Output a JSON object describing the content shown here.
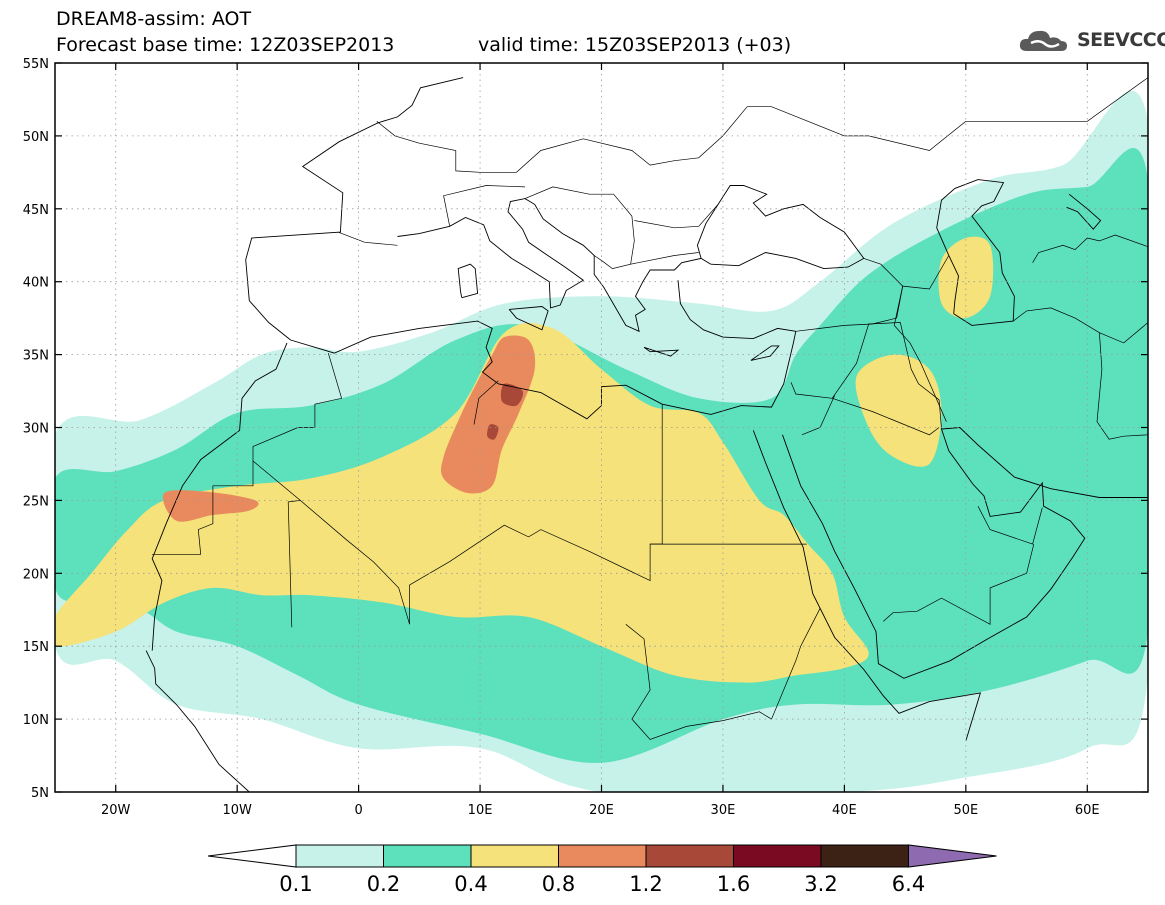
{
  "header": {
    "title_line1": "DREAM8-assim: AOT",
    "title_line2": "Forecast base time: 12Z03SEP2013",
    "valid_time": "valid time: 15Z03SEP2013 (+03)"
  },
  "logo": {
    "text": "SEEVCCC",
    "icon": "cloud-icon"
  },
  "map": {
    "lon_range": [
      -25,
      65
    ],
    "lat_range": [
      5,
      55
    ],
    "lon_ticks": [
      {
        "value": -20,
        "label": "20W"
      },
      {
        "value": -10,
        "label": "10W"
      },
      {
        "value": 0,
        "label": "0"
      },
      {
        "value": 10,
        "label": "10E"
      },
      {
        "value": 20,
        "label": "20E"
      },
      {
        "value": 30,
        "label": "30E"
      },
      {
        "value": 40,
        "label": "40E"
      },
      {
        "value": 50,
        "label": "50E"
      },
      {
        "value": 60,
        "label": "60E"
      }
    ],
    "lat_ticks": [
      {
        "value": 5,
        "label": "5N"
      },
      {
        "value": 10,
        "label": "10N"
      },
      {
        "value": 15,
        "label": "15N"
      },
      {
        "value": 20,
        "label": "20N"
      },
      {
        "value": 25,
        "label": "25N"
      },
      {
        "value": 30,
        "label": "30N"
      },
      {
        "value": 35,
        "label": "35N"
      },
      {
        "value": 40,
        "label": "40N"
      },
      {
        "value": 45,
        "label": "45N"
      },
      {
        "value": 50,
        "label": "50N"
      },
      {
        "value": 55,
        "label": "55N"
      }
    ],
    "grid": true,
    "contours": [
      {
        "level": 0,
        "points": [
          [
            -25,
            29.5
          ],
          [
            -18,
            30.5
          ],
          [
            -12,
            33
          ],
          [
            -8,
            35
          ],
          [
            -4,
            35.5
          ],
          [
            0,
            35.2
          ],
          [
            6,
            36.5
          ],
          [
            12,
            38.5
          ],
          [
            20,
            39
          ],
          [
            28,
            38.5
          ],
          [
            34,
            38
          ],
          [
            38,
            40
          ],
          [
            44,
            44
          ],
          [
            52,
            47
          ],
          [
            58,
            48
          ],
          [
            65,
            51
          ],
          [
            65,
            13
          ],
          [
            60,
            8
          ],
          [
            50,
            6
          ],
          [
            40,
            5
          ],
          [
            20,
            5
          ],
          [
            10,
            8
          ],
          [
            0,
            8
          ],
          [
            -8,
            10
          ],
          [
            -15,
            11
          ],
          [
            -20,
            14
          ],
          [
            -25,
            15
          ]
        ]
      },
      {
        "level": 1,
        "points": [
          [
            -25,
            26.5
          ],
          [
            -20,
            27
          ],
          [
            -15,
            28.5
          ],
          [
            -10,
            31
          ],
          [
            -4,
            31.5
          ],
          [
            2,
            33
          ],
          [
            8,
            36
          ],
          [
            14,
            37
          ],
          [
            22,
            34
          ],
          [
            28,
            32
          ],
          [
            34,
            32
          ],
          [
            36,
            35
          ],
          [
            38,
            37
          ],
          [
            42,
            40.5
          ],
          [
            48,
            43.5
          ],
          [
            55,
            46
          ],
          [
            60,
            46.5
          ],
          [
            65,
            47
          ],
          [
            65,
            16
          ],
          [
            60,
            14
          ],
          [
            52,
            12
          ],
          [
            44,
            11
          ],
          [
            36,
            11
          ],
          [
            30,
            10
          ],
          [
            20,
            7
          ],
          [
            10,
            9
          ],
          [
            0,
            11
          ],
          [
            -5,
            13
          ],
          [
            -10,
            15
          ],
          [
            -15,
            16
          ],
          [
            -18,
            17.5
          ],
          [
            -22,
            18
          ],
          [
            -25,
            19
          ]
        ]
      },
      {
        "level": 2,
        "points": [
          [
            -25,
            17
          ],
          [
            -22,
            20
          ],
          [
            -19,
            23
          ],
          [
            -16,
            25
          ],
          [
            -10,
            26
          ],
          [
            -4,
            26.5
          ],
          [
            2,
            28
          ],
          [
            8,
            31
          ],
          [
            12,
            36.5
          ],
          [
            16,
            36.8
          ],
          [
            20,
            34
          ],
          [
            24,
            31.5
          ],
          [
            28,
            31
          ],
          [
            30,
            29
          ],
          [
            33,
            25
          ],
          [
            35,
            24
          ],
          [
            37,
            22
          ],
          [
            39,
            20
          ],
          [
            40,
            17
          ],
          [
            42,
            14.5
          ],
          [
            40,
            13.5
          ],
          [
            36,
            13
          ],
          [
            32,
            12.5
          ],
          [
            26,
            13
          ],
          [
            20,
            15
          ],
          [
            14,
            17
          ],
          [
            8,
            17
          ],
          [
            2,
            18
          ],
          [
            -4,
            18.5
          ],
          [
            -8,
            18.5
          ],
          [
            -12,
            19
          ],
          [
            -16,
            18
          ],
          [
            -20,
            16
          ],
          [
            -25,
            15
          ]
        ]
      },
      {
        "level": 2,
        "points": [
          [
            41,
            33.5
          ],
          [
            44,
            35
          ],
          [
            47,
            34
          ],
          [
            48,
            31
          ],
          [
            47,
            27.5
          ],
          [
            44,
            28
          ],
          [
            42,
            30
          ]
        ]
      },
      {
        "level": 2,
        "points": [
          [
            48,
            41.5
          ],
          [
            50,
            43
          ],
          [
            52,
            42.5
          ],
          [
            52,
            39
          ],
          [
            50,
            37.5
          ],
          [
            48,
            38.5
          ]
        ]
      },
      {
        "level": 3,
        "points": [
          [
            12,
            36.2
          ],
          [
            14,
            36
          ],
          [
            14.5,
            34
          ],
          [
            13.2,
            31
          ],
          [
            11.8,
            28.5
          ],
          [
            11,
            26
          ],
          [
            9,
            25.5
          ],
          [
            7,
            26.5
          ],
          [
            7,
            28
          ],
          [
            8.5,
            31
          ],
          [
            10,
            33.5
          ],
          [
            11,
            35
          ]
        ]
      },
      {
        "level": 3,
        "points": [
          [
            -16,
            25.5
          ],
          [
            -12.5,
            25.6
          ],
          [
            -8.5,
            25
          ],
          [
            -9,
            24.3
          ],
          [
            -12,
            24
          ],
          [
            -15,
            23.6
          ]
        ]
      },
      {
        "level": 4,
        "points": [
          [
            12,
            33
          ],
          [
            13.5,
            32.5
          ],
          [
            13,
            31.5
          ],
          [
            11.8,
            31.8
          ]
        ]
      },
      {
        "level": 4,
        "points": [
          [
            10.8,
            30.2
          ],
          [
            11.5,
            30
          ],
          [
            11.2,
            29.2
          ],
          [
            10.6,
            29.4
          ]
        ]
      }
    ]
  },
  "colorbar": {
    "labels": [
      "0.1",
      "0.2",
      "0.4",
      "0.8",
      "1.2",
      "1.6",
      "3.2",
      "6.4"
    ],
    "colors": [
      "#ffffff",
      "#c6f2ea",
      "#5de0bc",
      "#f5e27a",
      "#e98a5e",
      "#a84838",
      "#7a0a22",
      "#3b2214",
      "#8e6ab0"
    ]
  }
}
